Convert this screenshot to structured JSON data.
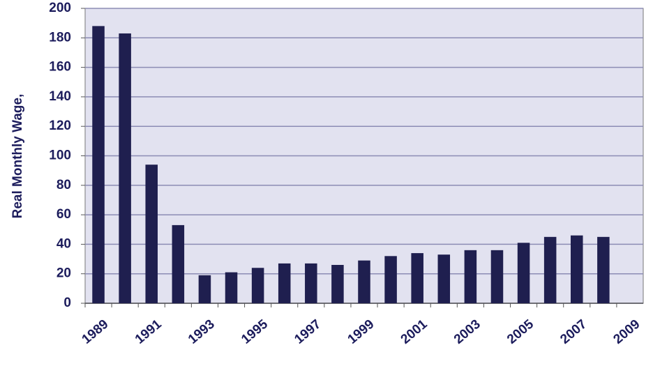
{
  "chart_data": {
    "type": "bar",
    "y_axis_label": "Real Monthly Wage,",
    "categories": [
      "1989",
      null,
      "1991",
      null,
      "1993",
      null,
      "1995",
      null,
      "1997",
      null,
      "1999",
      null,
      "2001",
      null,
      "2003",
      null,
      "2005",
      null,
      "2007",
      null,
      "2009"
    ],
    "values": [
      188,
      183,
      94,
      53,
      19,
      21,
      24,
      27,
      27,
      26,
      29,
      32,
      34,
      33,
      36,
      36,
      41,
      45,
      46,
      45,
      null
    ],
    "color": "#1f1f4f",
    "ylim": [
      0,
      200
    ],
    "yticks": [
      0,
      20,
      40,
      60,
      80,
      100,
      120,
      140,
      160,
      180,
      200
    ],
    "grid": true
  }
}
